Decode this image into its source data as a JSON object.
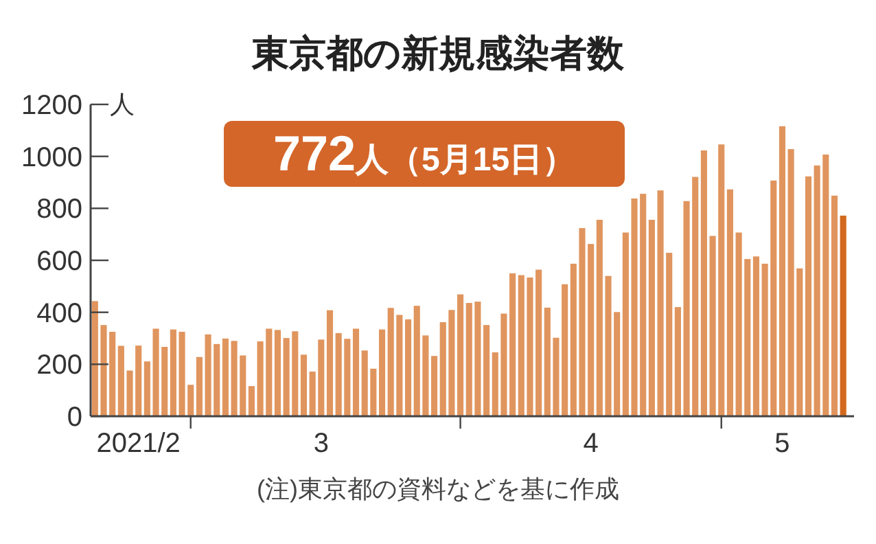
{
  "chart_data": {
    "type": "bar",
    "title": "東京都の新規感染者数",
    "ylabel": "人",
    "x": [
      "2021-02-18",
      "2021-02-19",
      "2021-02-20",
      "2021-02-21",
      "2021-02-22",
      "2021-02-23",
      "2021-02-24",
      "2021-02-25",
      "2021-02-26",
      "2021-02-27",
      "2021-02-28",
      "2021-03-01",
      "2021-03-02",
      "2021-03-03",
      "2021-03-04",
      "2021-03-05",
      "2021-03-06",
      "2021-03-07",
      "2021-03-08",
      "2021-03-09",
      "2021-03-10",
      "2021-03-11",
      "2021-03-12",
      "2021-03-13",
      "2021-03-14",
      "2021-03-15",
      "2021-03-16",
      "2021-03-17",
      "2021-03-18",
      "2021-03-19",
      "2021-03-20",
      "2021-03-21",
      "2021-03-22",
      "2021-03-23",
      "2021-03-24",
      "2021-03-25",
      "2021-03-26",
      "2021-03-27",
      "2021-03-28",
      "2021-03-29",
      "2021-03-30",
      "2021-03-31",
      "2021-04-01",
      "2021-04-02",
      "2021-04-03",
      "2021-04-04",
      "2021-04-05",
      "2021-04-06",
      "2021-04-07",
      "2021-04-08",
      "2021-04-09",
      "2021-04-10",
      "2021-04-11",
      "2021-04-12",
      "2021-04-13",
      "2021-04-14",
      "2021-04-15",
      "2021-04-16",
      "2021-04-17",
      "2021-04-18",
      "2021-04-19",
      "2021-04-20",
      "2021-04-21",
      "2021-04-22",
      "2021-04-23",
      "2021-04-24",
      "2021-04-25",
      "2021-04-26",
      "2021-04-27",
      "2021-04-28",
      "2021-04-29",
      "2021-04-30",
      "2021-05-01",
      "2021-05-02",
      "2021-05-03",
      "2021-05-04",
      "2021-05-05",
      "2021-05-06",
      "2021-05-07",
      "2021-05-08",
      "2021-05-09",
      "2021-05-10",
      "2021-05-11",
      "2021-05-12",
      "2021-05-13",
      "2021-05-14",
      "2021-05-15"
    ],
    "values": [
      443,
      351,
      325,
      271,
      176,
      272,
      211,
      337,
      267,
      334,
      325,
      121,
      228,
      315,
      278,
      299,
      290,
      234,
      116,
      288,
      337,
      332,
      301,
      327,
      237,
      172,
      295,
      408,
      320,
      298,
      337,
      253,
      183,
      334,
      417,
      390,
      373,
      425,
      311,
      232,
      362,
      409,
      469,
      436,
      441,
      351,
      246,
      395,
      550,
      543,
      534,
      564,
      418,
      302,
      508,
      587,
      724,
      663,
      756,
      540,
      401,
      707,
      838,
      856,
      756,
      869,
      629,
      420,
      828,
      921,
      1023,
      694,
      1046,
      873,
      707,
      605,
      615,
      587,
      907,
      1116,
      1028,
      569,
      923,
      965,
      1007,
      849,
      772
    ],
    "colors": [
      "#e0955e",
      "#e0955e",
      "#e0955e",
      "#e0955e",
      "#e0955e",
      "#e0955e",
      "#e0955e",
      "#e0955e",
      "#e0955e",
      "#e0955e",
      "#e0955e",
      "#e0955e",
      "#e0955e",
      "#e0955e",
      "#e0955e",
      "#e0955e",
      "#e0955e",
      "#e0955e",
      "#e0955e",
      "#e0955e",
      "#e0955e",
      "#e0955e",
      "#e0955e",
      "#e0955e",
      "#e0955e",
      "#e0955e",
      "#e0955e",
      "#e0955e",
      "#e0955e",
      "#e0955e",
      "#e0955e",
      "#e0955e",
      "#e0955e",
      "#e0955e",
      "#e0955e",
      "#e0955e",
      "#e0955e",
      "#e0955e",
      "#e0955e",
      "#e0955e",
      "#e0955e",
      "#e0955e",
      "#e0955e",
      "#e0955e",
      "#e0955e",
      "#e0955e",
      "#e0955e",
      "#e0955e",
      "#e0955e",
      "#e0955e",
      "#e0955e",
      "#e0955e",
      "#e0955e",
      "#e0955e",
      "#e0955e",
      "#e0955e",
      "#e0955e",
      "#e0955e",
      "#e0955e",
      "#e0955e",
      "#e0955e",
      "#e0955e",
      "#e0955e",
      "#e0955e",
      "#e0955e",
      "#e0955e",
      "#e0955e",
      "#e0955e",
      "#e0955e",
      "#e0955e",
      "#e0955e",
      "#e0955e",
      "#e0955e",
      "#e0955e",
      "#e0955e",
      "#e0955e",
      "#e0955e",
      "#e0955e",
      "#e0955e",
      "#e0955e",
      "#e0955e",
      "#e0955e",
      "#e0955e",
      "#e0955e",
      "#e0955e",
      "#e0955e",
      "#d2691e"
    ],
    "xlim": [
      "2021-02-17T12:00",
      "2021-05-16T06:00"
    ],
    "xticks": [
      {
        "value": "2021-02-23",
        "label": "2021/2"
      },
      {
        "value": "2021-03-01",
        "label": null
      },
      {
        "value": "2021-03-16",
        "label": "3"
      },
      {
        "value": "2021-04-01",
        "label": null
      },
      {
        "value": "2021-04-16",
        "label": "4"
      },
      {
        "value": "2021-05-01",
        "label": null
      },
      {
        "value": "2021-05-08",
        "label": "5"
      }
    ],
    "ylim": [
      0,
      1200
    ],
    "yticks": [
      0,
      200,
      400,
      600,
      800,
      1000,
      1200
    ],
    "annotations": [
      "772人（5月15日）",
      "(注)東京都の資料などを基に作成"
    ]
  }
}
